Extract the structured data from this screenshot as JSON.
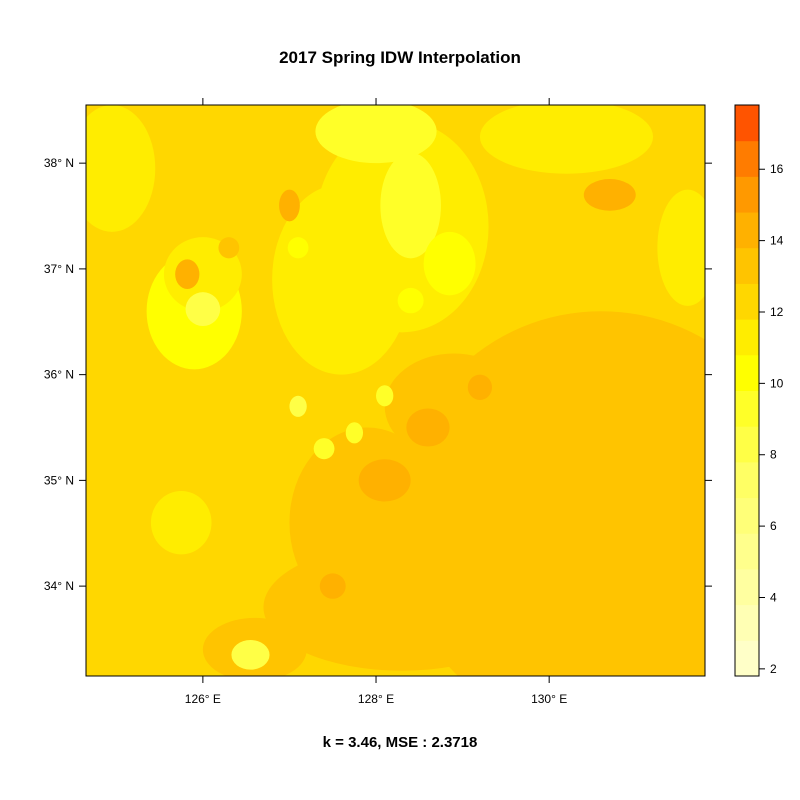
{
  "chart_data": {
    "type": "heatmap",
    "title": "2017 Spring IDW Interpolation",
    "subtitle": "k = 3.46, MSE : 2.3718",
    "x_ticks": [
      "126° E",
      "128° E",
      "130° E"
    ],
    "y_ticks": [
      "38° N",
      "37° N",
      "36° N",
      "35° N",
      "34° N"
    ],
    "xlim": [
      124.65,
      131.8
    ],
    "ylim": [
      33.15,
      38.55
    ],
    "colorbar": {
      "range": [
        1.8,
        17.8
      ],
      "ticks": [
        2,
        4,
        6,
        8,
        10,
        12,
        14,
        16
      ],
      "levels": [
        {
          "from": 1.8,
          "to": 2.8,
          "color": "#FFFFC8"
        },
        {
          "from": 2.8,
          "to": 3.8,
          "color": "#FFFFB4"
        },
        {
          "from": 3.8,
          "to": 4.8,
          "color": "#FFFFA0"
        },
        {
          "from": 4.8,
          "to": 5.8,
          "color": "#FFFF8C"
        },
        {
          "from": 5.8,
          "to": 6.8,
          "color": "#FFFF78"
        },
        {
          "from": 6.8,
          "to": 7.8,
          "color": "#FFFF64"
        },
        {
          "from": 7.8,
          "to": 8.8,
          "color": "#FFFF46"
        },
        {
          "from": 8.8,
          "to": 9.8,
          "color": "#FFFF28"
        },
        {
          "from": 9.8,
          "to": 10.8,
          "color": "#FFFF00"
        },
        {
          "from": 10.8,
          "to": 11.8,
          "color": "#FFED00"
        },
        {
          "from": 11.8,
          "to": 12.8,
          "color": "#FFD700"
        },
        {
          "from": 12.8,
          "to": 13.8,
          "color": "#FFC400"
        },
        {
          "from": 13.8,
          "to": 14.8,
          "color": "#FFB100"
        },
        {
          "from": 14.8,
          "to": 15.8,
          "color": "#FF9900"
        },
        {
          "from": 15.8,
          "to": 16.8,
          "color": "#FF7C00"
        },
        {
          "from": 16.8,
          "to": 17.8,
          "color": "#FF5400"
        }
      ]
    },
    "base_value": 12.3,
    "regions": [
      {
        "lon": 130.6,
        "lat": 34.6,
        "rlon": 2.4,
        "rlat": 2.0,
        "value": 13.3
      },
      {
        "lon": 128.3,
        "lat": 33.8,
        "rlon": 1.6,
        "rlat": 0.6,
        "value": 13.3
      },
      {
        "lon": 127.9,
        "lat": 34.6,
        "rlon": 0.9,
        "rlat": 0.9,
        "value": 13.3
      },
      {
        "lon": 128.9,
        "lat": 35.7,
        "rlon": 0.8,
        "rlat": 0.5,
        "value": 13.3
      },
      {
        "lon": 126.6,
        "lat": 33.4,
        "rlon": 0.6,
        "rlat": 0.3,
        "value": 13.3
      },
      {
        "lon": 124.95,
        "lat": 37.95,
        "rlon": 0.5,
        "rlat": 0.6,
        "value": 10.8
      },
      {
        "lon": 131.6,
        "lat": 37.2,
        "rlon": 0.35,
        "rlat": 0.55,
        "value": 10.8
      },
      {
        "lon": 130.2,
        "lat": 38.25,
        "rlon": 1.0,
        "rlat": 0.35,
        "value": 11.4
      },
      {
        "lon": 128.3,
        "lat": 37.4,
        "rlon": 1.0,
        "rlat": 1.0,
        "value": 11.2
      },
      {
        "lon": 127.6,
        "lat": 36.9,
        "rlon": 0.8,
        "rlat": 0.9,
        "value": 11.6
      },
      {
        "lon": 125.9,
        "lat": 36.6,
        "rlon": 0.55,
        "rlat": 0.55,
        "value": 10.2
      },
      {
        "lon": 126.0,
        "lat": 36.95,
        "rlon": 0.45,
        "rlat": 0.35,
        "value": 11.3
      },
      {
        "lon": 128.0,
        "lat": 38.3,
        "rlon": 0.7,
        "rlat": 0.3,
        "value": 9.6
      },
      {
        "lon": 128.4,
        "lat": 37.6,
        "rlon": 0.35,
        "rlat": 0.5,
        "value": 9.4
      },
      {
        "lon": 128.85,
        "lat": 37.05,
        "rlon": 0.3,
        "rlat": 0.3,
        "value": 10.0
      },
      {
        "lon": 125.75,
        "lat": 34.6,
        "rlon": 0.35,
        "rlat": 0.3,
        "value": 11.4
      },
      {
        "lon": 126.55,
        "lat": 33.35,
        "rlon": 0.22,
        "rlat": 0.14,
        "value": 8.6
      },
      {
        "lon": 125.82,
        "lat": 36.95,
        "rlon": 0.14,
        "rlat": 0.14,
        "value": 14.2
      },
      {
        "lon": 126.0,
        "lat": 36.62,
        "rlon": 0.2,
        "rlat": 0.16,
        "value": 8.2
      },
      {
        "lon": 129.2,
        "lat": 35.88,
        "rlon": 0.14,
        "rlat": 0.12,
        "value": 14.6
      },
      {
        "lon": 128.6,
        "lat": 35.5,
        "rlon": 0.25,
        "rlat": 0.18,
        "value": 13.9
      },
      {
        "lon": 130.7,
        "lat": 37.7,
        "rlon": 0.3,
        "rlat": 0.15,
        "value": 13.8
      },
      {
        "lon": 128.1,
        "lat": 35.0,
        "rlon": 0.3,
        "rlat": 0.2,
        "value": 13.9
      },
      {
        "lon": 127.5,
        "lat": 34.0,
        "rlon": 0.15,
        "rlat": 0.12,
        "value": 14.0
      },
      {
        "lon": 126.3,
        "lat": 37.2,
        "rlon": 0.12,
        "rlat": 0.1,
        "value": 13.5
      },
      {
        "lon": 127.0,
        "lat": 37.6,
        "rlon": 0.12,
        "rlat": 0.15,
        "value": 13.8
      },
      {
        "lon": 127.4,
        "lat": 35.3,
        "rlon": 0.12,
        "rlat": 0.1,
        "value": 9.0
      },
      {
        "lon": 127.1,
        "lat": 35.7,
        "rlon": 0.1,
        "rlat": 0.1,
        "value": 8.5
      },
      {
        "lon": 128.1,
        "lat": 35.8,
        "rlon": 0.1,
        "rlat": 0.1,
        "value": 9.2
      },
      {
        "lon": 127.75,
        "lat": 35.45,
        "rlon": 0.1,
        "rlat": 0.1,
        "value": 9.6
      },
      {
        "lon": 128.4,
        "lat": 36.7,
        "rlon": 0.15,
        "rlat": 0.12,
        "value": 10.3
      },
      {
        "lon": 127.1,
        "lat": 37.2,
        "rlon": 0.12,
        "rlat": 0.1,
        "value": 9.8
      }
    ]
  }
}
